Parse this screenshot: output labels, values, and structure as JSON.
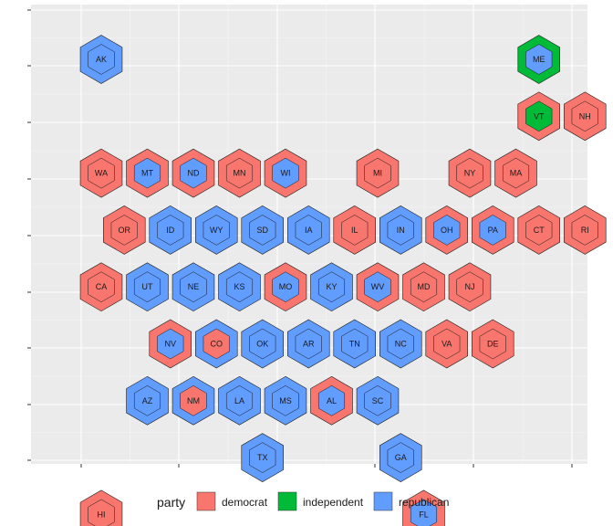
{
  "chart_data": {
    "type": "hexbin-map",
    "title": "",
    "xlabel": "",
    "ylabel": "",
    "grid": true,
    "legend_placement": "bottom",
    "legend_title": "party",
    "parties": [
      {
        "key": "democrat",
        "label": "democrat",
        "color": "#F8766D"
      },
      {
        "key": "independent",
        "label": "independent",
        "color": "#00BA38"
      },
      {
        "key": "republican",
        "label": "republican",
        "color": "#619CFF"
      }
    ],
    "states": [
      {
        "abbr": "AK",
        "col": 0,
        "row": 0,
        "outer": "republican",
        "inner": "republican"
      },
      {
        "abbr": "ME",
        "col": 9.5,
        "row": 0,
        "outer": "independent",
        "inner": "republican"
      },
      {
        "abbr": "VT",
        "col": 9,
        "row": 1,
        "outer": "democrat",
        "inner": "independent"
      },
      {
        "abbr": "NH",
        "col": 10,
        "row": 1,
        "outer": "democrat",
        "inner": "democrat"
      },
      {
        "abbr": "WA",
        "col": 0,
        "row": 2,
        "outer": "democrat",
        "inner": "democrat"
      },
      {
        "abbr": "MT",
        "col": 1,
        "row": 2,
        "outer": "democrat",
        "inner": "republican"
      },
      {
        "abbr": "ND",
        "col": 2,
        "row": 2,
        "outer": "democrat",
        "inner": "republican"
      },
      {
        "abbr": "MN",
        "col": 3,
        "row": 2,
        "outer": "democrat",
        "inner": "democrat"
      },
      {
        "abbr": "WI",
        "col": 4,
        "row": 2,
        "outer": "democrat",
        "inner": "republican"
      },
      {
        "abbr": "MI",
        "col": 6,
        "row": 2,
        "outer": "democrat",
        "inner": "democrat"
      },
      {
        "abbr": "NY",
        "col": 8,
        "row": 2,
        "outer": "democrat",
        "inner": "democrat"
      },
      {
        "abbr": "MA",
        "col": 9,
        "row": 2,
        "outer": "democrat",
        "inner": "democrat"
      },
      {
        "abbr": "OR",
        "col": 0,
        "row": 3,
        "outer": "democrat",
        "inner": "democrat"
      },
      {
        "abbr": "ID",
        "col": 1,
        "row": 3,
        "outer": "republican",
        "inner": "republican"
      },
      {
        "abbr": "WY",
        "col": 2,
        "row": 3,
        "outer": "republican",
        "inner": "republican"
      },
      {
        "abbr": "SD",
        "col": 3,
        "row": 3,
        "outer": "republican",
        "inner": "republican"
      },
      {
        "abbr": "IA",
        "col": 4,
        "row": 3,
        "outer": "republican",
        "inner": "republican"
      },
      {
        "abbr": "IL",
        "col": 5,
        "row": 3,
        "outer": "democrat",
        "inner": "democrat"
      },
      {
        "abbr": "IN",
        "col": 6,
        "row": 3,
        "outer": "republican",
        "inner": "republican"
      },
      {
        "abbr": "OH",
        "col": 7,
        "row": 3,
        "outer": "democrat",
        "inner": "republican"
      },
      {
        "abbr": "PA",
        "col": 8,
        "row": 3,
        "outer": "democrat",
        "inner": "republican"
      },
      {
        "abbr": "CT",
        "col": 9,
        "row": 3,
        "outer": "democrat",
        "inner": "democrat"
      },
      {
        "abbr": "RI",
        "col": 10,
        "row": 3,
        "outer": "democrat",
        "inner": "democrat"
      },
      {
        "abbr": "CA",
        "col": 0,
        "row": 4,
        "outer": "democrat",
        "inner": "democrat"
      },
      {
        "abbr": "UT",
        "col": 1,
        "row": 4,
        "outer": "republican",
        "inner": "republican"
      },
      {
        "abbr": "NE",
        "col": 2,
        "row": 4,
        "outer": "republican",
        "inner": "republican"
      },
      {
        "abbr": "KS",
        "col": 3,
        "row": 4,
        "outer": "republican",
        "inner": "republican"
      },
      {
        "abbr": "MO",
        "col": 4,
        "row": 4,
        "outer": "democrat",
        "inner": "republican"
      },
      {
        "abbr": "KY",
        "col": 5,
        "row": 4,
        "outer": "republican",
        "inner": "republican"
      },
      {
        "abbr": "WV",
        "col": 6,
        "row": 4,
        "outer": "democrat",
        "inner": "republican"
      },
      {
        "abbr": "MD",
        "col": 7,
        "row": 4,
        "outer": "democrat",
        "inner": "democrat"
      },
      {
        "abbr": "NJ",
        "col": 8,
        "row": 4,
        "outer": "democrat",
        "inner": "democrat"
      },
      {
        "abbr": "NV",
        "col": 1,
        "row": 5,
        "outer": "democrat",
        "inner": "republican"
      },
      {
        "abbr": "CO",
        "col": 2,
        "row": 5,
        "outer": "republican",
        "inner": "democrat"
      },
      {
        "abbr": "OK",
        "col": 3,
        "row": 5,
        "outer": "republican",
        "inner": "republican"
      },
      {
        "abbr": "AR",
        "col": 4,
        "row": 5,
        "outer": "republican",
        "inner": "republican"
      },
      {
        "abbr": "TN",
        "col": 5,
        "row": 5,
        "outer": "republican",
        "inner": "republican"
      },
      {
        "abbr": "NC",
        "col": 6,
        "row": 5,
        "outer": "republican",
        "inner": "republican"
      },
      {
        "abbr": "VA",
        "col": 7,
        "row": 5,
        "outer": "democrat",
        "inner": "democrat"
      },
      {
        "abbr": "DE",
        "col": 8,
        "row": 5,
        "outer": "democrat",
        "inner": "democrat"
      },
      {
        "abbr": "AZ",
        "col": 1,
        "row": 6,
        "outer": "republican",
        "inner": "republican"
      },
      {
        "abbr": "NM",
        "col": 2,
        "row": 6,
        "outer": "republican",
        "inner": "democrat"
      },
      {
        "abbr": "LA",
        "col": 3,
        "row": 6,
        "outer": "republican",
        "inner": "republican"
      },
      {
        "abbr": "MS",
        "col": 4,
        "row": 6,
        "outer": "republican",
        "inner": "republican"
      },
      {
        "abbr": "AL",
        "col": 5,
        "row": 6,
        "outer": "democrat",
        "inner": "republican"
      },
      {
        "abbr": "SC",
        "col": 6,
        "row": 6,
        "outer": "republican",
        "inner": "republican"
      },
      {
        "abbr": "TX",
        "col": 3,
        "row": 7,
        "outer": "republican",
        "inner": "republican"
      },
      {
        "abbr": "GA",
        "col": 6,
        "row": 7,
        "outer": "republican",
        "inner": "republican"
      },
      {
        "abbr": "HI",
        "col": 0,
        "row": 8,
        "outer": "democrat",
        "inner": "democrat"
      },
      {
        "abbr": "FL",
        "col": 7,
        "row": 8,
        "outer": "democrat",
        "inner": "republican"
      }
    ]
  }
}
